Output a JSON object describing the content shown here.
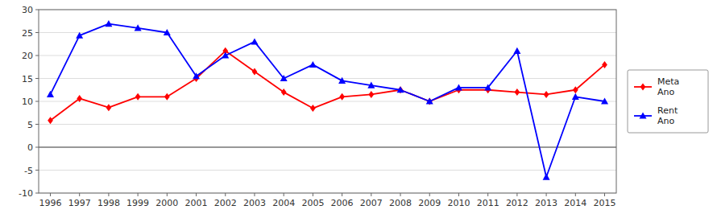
{
  "chart_data": {
    "type": "line",
    "x": [
      1996,
      1997,
      1998,
      1999,
      2000,
      2001,
      2002,
      2003,
      2004,
      2005,
      2006,
      2007,
      2008,
      2009,
      2010,
      2011,
      2012,
      2013,
      2014,
      2015
    ],
    "series": [
      {
        "name": "Meta\nAno",
        "color": "#FF0000",
        "marker": "diamond",
        "values": [
          5.84,
          10.62,
          8.65,
          11.0,
          11.0,
          15.0,
          21.0,
          16.5,
          12.0,
          8.5,
          11.0,
          11.5,
          12.5,
          10.0,
          12.5,
          12.5,
          12.0,
          11.5,
          12.5,
          18.0
        ]
      },
      {
        "name": "Rent\nAno",
        "color": "#0000FF",
        "marker": "triangle",
        "values": [
          11.53,
          24.35,
          26.92,
          26.0,
          25.0,
          15.5,
          20.0,
          23.0,
          15.0,
          18.0,
          14.5,
          13.5,
          12.5,
          10.0,
          13.0,
          13.0,
          21.0,
          -6.5,
          11.0,
          10.0
        ]
      }
    ],
    "xlim": [
      1995.6,
      2015.4
    ],
    "xticks": [
      1996,
      1997,
      1998,
      1999,
      2000,
      2001,
      2002,
      2003,
      2004,
      2005,
      2006,
      2007,
      2008,
      2009,
      2010,
      2011,
      2012,
      2013,
      2014,
      2015
    ],
    "ylim": [
      -10,
      30
    ],
    "yticks": [
      -10,
      -5,
      0,
      5,
      10,
      15,
      20,
      25,
      30
    ],
    "grid": true,
    "legend": "right"
  }
}
